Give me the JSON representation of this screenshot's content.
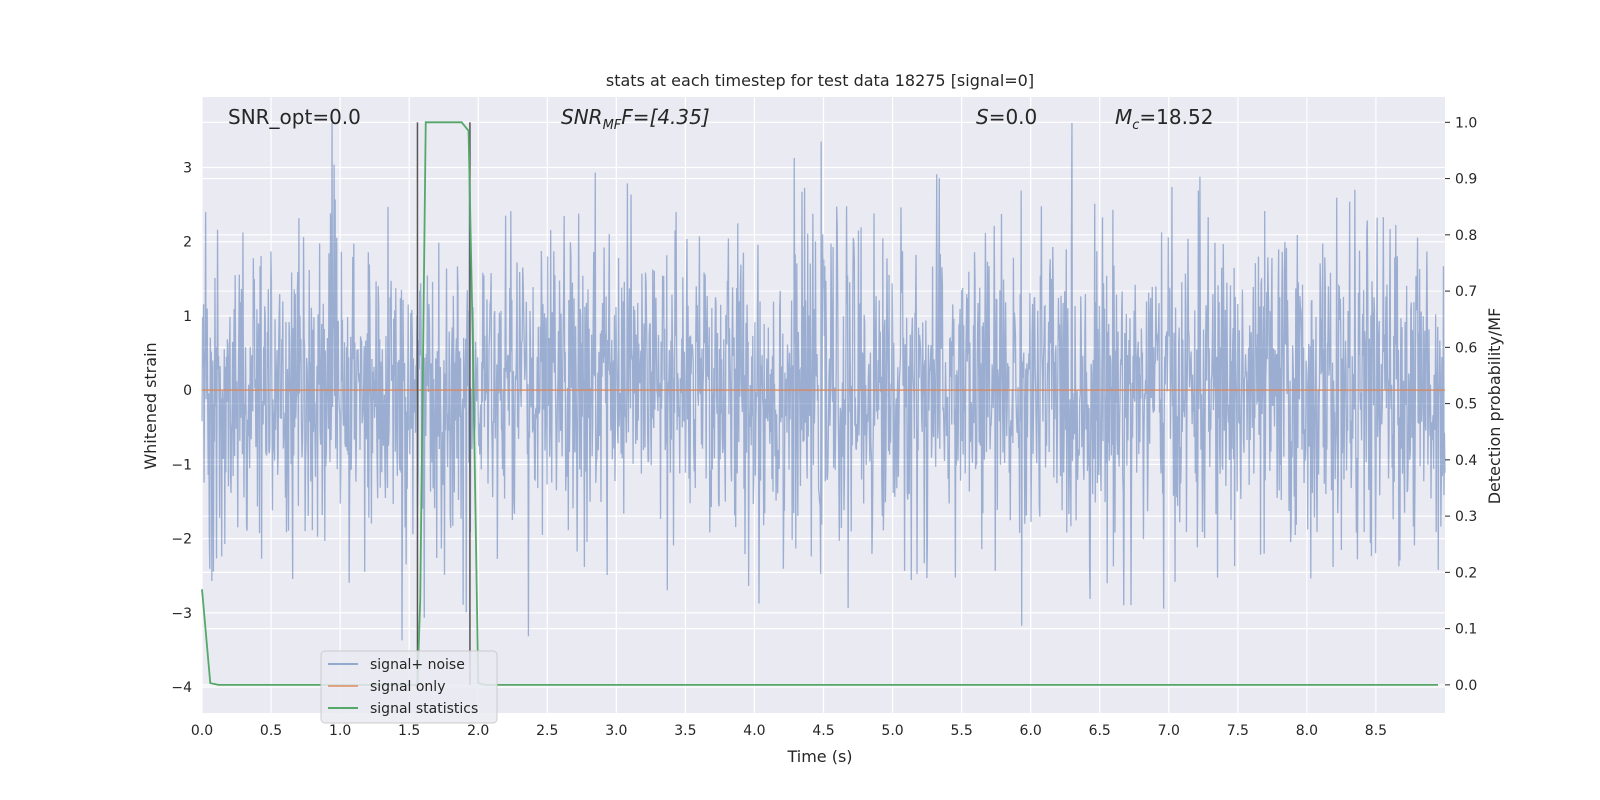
{
  "chart_data": {
    "type": "line",
    "title": "stats at each timestep for test data 18275 [signal=0]",
    "xlabel": "Time (s)",
    "ylabel_left": "Whitened strain",
    "ylabel_right": "Detection probability/MF",
    "xlim": [
      0.0,
      9.0
    ],
    "ylim_left": [
      -4.35,
      3.95
    ],
    "ylim_right": [
      -0.05,
      1.045
    ],
    "x_ticks": [
      0.0,
      0.5,
      1.0,
      1.5,
      2.0,
      2.5,
      3.0,
      3.5,
      4.0,
      4.5,
      5.0,
      5.5,
      6.0,
      6.5,
      7.0,
      7.5,
      8.0,
      8.5
    ],
    "x_tick_labels": [
      "0.0",
      "0.5",
      "1.0",
      "1.5",
      "2.0",
      "2.5",
      "3.0",
      "3.5",
      "4.0",
      "4.5",
      "5.0",
      "5.5",
      "6.0",
      "6.5",
      "7.0",
      "7.5",
      "8.0",
      "8.5"
    ],
    "y_ticks_left": [
      3,
      2,
      1,
      0,
      -1,
      -2,
      -3,
      -4
    ],
    "y_tick_labels_left": [
      "3",
      "2",
      "1",
      "0",
      "−1",
      "−2",
      "−3",
      "−4"
    ],
    "y_ticks_right": [
      1.0,
      0.9,
      0.8,
      0.7,
      0.6,
      0.5,
      0.4,
      0.3,
      0.2,
      0.1,
      0.0
    ],
    "y_tick_labels_right": [
      "1.0",
      "0.9",
      "0.8",
      "0.7",
      "0.6",
      "0.5",
      "0.4",
      "0.3",
      "0.2",
      "0.1",
      "0.0"
    ],
    "grid": true,
    "legend_position": "bottom-left",
    "annotations": {
      "snr_opt": "SNR_opt=0.0",
      "snr_mf_main": "SNR",
      "snr_mf_sub": "MF",
      "snr_mf_value": "F=[4.35]",
      "s_symbol": "S",
      "s_value": "=0.0",
      "mc_symbol": "M",
      "mc_sub": "c",
      "mc_value": "=18.52"
    },
    "vertical_markers_x": [
      1.56,
      1.94
    ],
    "noise": {
      "amplitude_std": 1.05,
      "range": [
        -4.0,
        3.6
      ],
      "duration_s": 9.0
    },
    "series": [
      {
        "name": "signal+ noise",
        "color": "#4c72b0",
        "axis": "left",
        "style": "noise"
      },
      {
        "name": "signal only",
        "color": "#dd8452",
        "axis": "left",
        "x": [
          0.0,
          9.0
        ],
        "y": [
          0.0,
          0.0
        ]
      },
      {
        "name": "signal statistics",
        "color": "#55a868",
        "axis": "right",
        "x": [
          0.0,
          0.06,
          0.12,
          0.5,
          1.0,
          1.56,
          1.58,
          1.62,
          1.7,
          1.8,
          1.88,
          1.93,
          1.96,
          2.0,
          2.05,
          3.0,
          4.0,
          5.0,
          6.0,
          7.0,
          8.0,
          8.7,
          8.95
        ],
        "y": [
          0.17,
          0.003,
          0.0,
          0.0,
          0.0,
          0.0,
          0.15,
          1.0,
          1.0,
          1.0,
          1.0,
          0.985,
          0.62,
          0.003,
          0.0,
          0.0,
          0.0,
          0.0,
          0.0,
          0.0,
          0.0,
          0.0,
          0.0
        ]
      }
    ]
  }
}
